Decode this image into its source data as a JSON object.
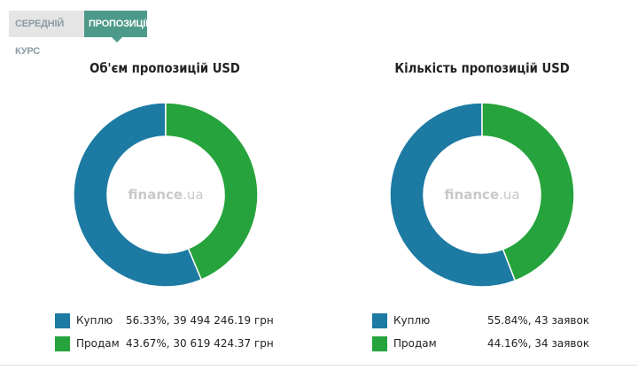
{
  "tabs": {
    "average_rate_label": "СЕРЕДНІЙ КУРС",
    "offers_label": "ПРОПОЗИЦІЇ"
  },
  "colors": {
    "buy": "#1c7aa3",
    "sell": "#26a33c",
    "tab_active": "#4e9a8a"
  },
  "watermark": {
    "brand": "finance",
    "tld": ".ua"
  },
  "chart_data": [
    {
      "type": "pie",
      "title": "Об'єм пропозицій USD",
      "slices": [
        {
          "label": "Куплю",
          "value": 56.33,
          "detail": "56.33%, 39 494 246.19 грн"
        },
        {
          "label": "Продам",
          "value": 43.67,
          "detail": "43.67%, 30 619 424.37 грн"
        }
      ]
    },
    {
      "type": "pie",
      "title": "Кількість пропозицій USD",
      "slices": [
        {
          "label": "Куплю",
          "value": 55.84,
          "detail": "55.84%, 43 заявок"
        },
        {
          "label": "Продам",
          "value": 44.16,
          "detail": "44.16%, 34 заявок"
        }
      ]
    }
  ]
}
